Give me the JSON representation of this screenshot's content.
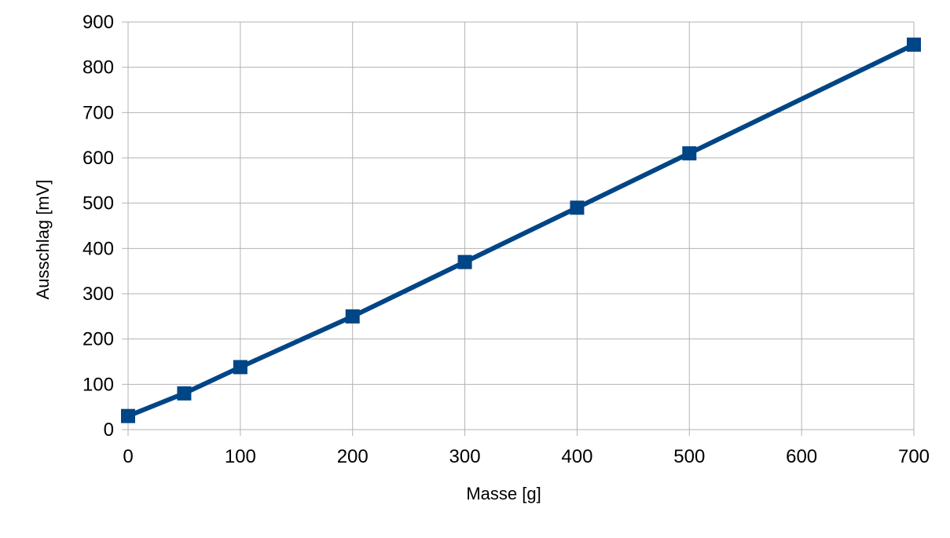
{
  "chart_data": {
    "type": "line",
    "title": "",
    "xlabel": "Masse [g]",
    "ylabel": "Ausschlag [mV]",
    "xlim": [
      0,
      700
    ],
    "ylim": [
      0,
      900
    ],
    "x_ticks": [
      "0",
      "100",
      "200",
      "300",
      "400",
      "500",
      "600",
      "700"
    ],
    "y_ticks": [
      "0",
      "100",
      "200",
      "300",
      "400",
      "500",
      "600",
      "700",
      "800",
      "900"
    ],
    "grid": true,
    "legend": "none",
    "marker": "square",
    "series": [
      {
        "color": "#004586",
        "x": [
          0,
          50,
          100,
          200,
          300,
          400,
          500,
          700
        ],
        "y": [
          30,
          80,
          138,
          250,
          370,
          490,
          610,
          850
        ]
      }
    ]
  }
}
